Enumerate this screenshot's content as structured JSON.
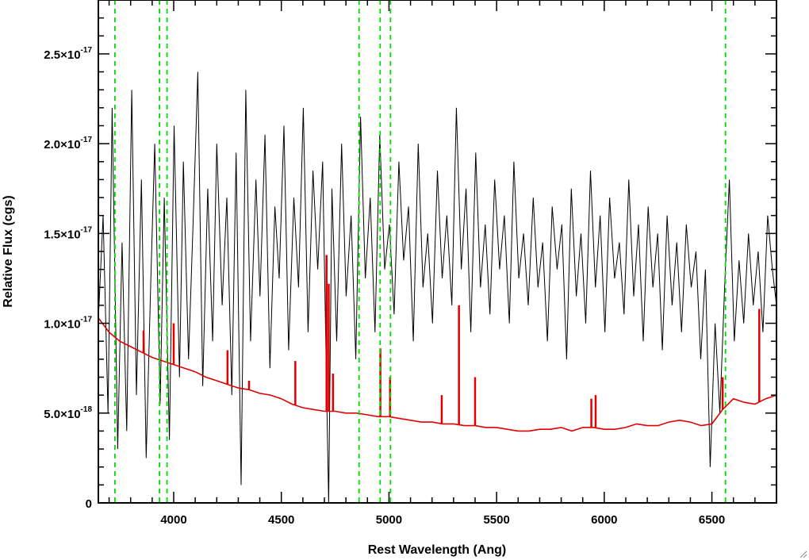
{
  "chart_data": {
    "type": "line",
    "title": "",
    "xlabel": "Rest Wavelength (Ang)",
    "ylabel": "Relative Flux (cgs)",
    "xlim": [
      3650,
      6800
    ],
    "ylim": [
      0,
      2.8e-17
    ],
    "x_ticks": [
      {
        "value": 4000,
        "label": "4000"
      },
      {
        "value": 4500,
        "label": "4500"
      },
      {
        "value": 5000,
        "label": "5000"
      },
      {
        "value": 5500,
        "label": "5500"
      },
      {
        "value": 6000,
        "label": "6000"
      },
      {
        "value": 6500,
        "label": "6500"
      }
    ],
    "y_ticks": [
      {
        "value": 0,
        "mantissa": "0",
        "exponent": ""
      },
      {
        "value": 5e-18,
        "mantissa": "5.0×10",
        "exponent": "-18"
      },
      {
        "value": 1e-17,
        "mantissa": "1.0×10",
        "exponent": "-17"
      },
      {
        "value": 1.5e-17,
        "mantissa": "1.5×10",
        "exponent": "-17"
      },
      {
        "value": 2e-17,
        "mantissa": "2.0×10",
        "exponent": "-17"
      },
      {
        "value": 2.5e-17,
        "mantissa": "2.5×10",
        "exponent": "-17"
      }
    ],
    "grid": false,
    "series": [
      {
        "color": "#000000",
        "x": [
          3650,
          3672,
          3695,
          3714,
          3740,
          3760,
          3782,
          3805,
          3827,
          3850,
          3872,
          3894,
          3912,
          3937,
          3956,
          3980,
          4002,
          4027,
          4045,
          4069,
          4090,
          4112,
          4135,
          4158,
          4181,
          4200,
          4225,
          4247,
          4270,
          4290,
          4313,
          4335,
          4357,
          4382,
          4401,
          4424,
          4447,
          4470,
          4490,
          4512,
          4534,
          4558,
          4580,
          4602,
          4624,
          4647,
          4669,
          4692,
          4712,
          4720,
          4735,
          4757,
          4780,
          4801,
          4824,
          4846,
          4868,
          4890,
          4913,
          4935,
          4957,
          4980,
          5002,
          5024,
          5046,
          5068,
          5091,
          5113,
          5136,
          5158,
          5180,
          5202,
          5225,
          5247,
          5269,
          5292,
          5313,
          5336,
          5358,
          5380,
          5403,
          5425,
          5447,
          5469,
          5491,
          5514,
          5536,
          5559,
          5580,
          5603,
          5625,
          5647,
          5670,
          5692,
          5714,
          5736,
          5758,
          5781,
          5803,
          5825,
          5847,
          5870,
          5892,
          5914,
          5936,
          5959,
          5981,
          6003,
          6025,
          6048,
          6070,
          6092,
          6114,
          6137,
          6159,
          6181,
          6204,
          6226,
          6248,
          6270,
          6292,
          6315,
          6337,
          6359,
          6381,
          6404,
          6426,
          6448,
          6470,
          6492,
          6515,
          6537,
          6559,
          6581,
          6604,
          6626,
          6648,
          6670,
          6692,
          6715,
          6737,
          6759,
          6781,
          6800
        ],
        "values": [
          1.02e-17,
          1.6e-17,
          5e-18,
          2.2e-17,
          3e-18,
          1.45e-17,
          4e-18,
          2.3e-17,
          6e-18,
          1.8e-17,
          2.5e-18,
          1.25e-17,
          2e-17,
          5.5e-18,
          1.7e-17,
          3.5e-18,
          2.1e-17,
          7e-18,
          1.9e-17,
          8e-18,
          1.55e-17,
          2.4e-17,
          6.5e-18,
          1.75e-17,
          9e-18,
          2e-17,
          1.1e-17,
          1.7e-17,
          6e-18,
          1.95e-17,
          1e-18,
          2.3e-17,
          9e-18,
          1.8e-17,
          1.15e-17,
          2.05e-17,
          7.5e-18,
          1.65e-17,
          1.25e-17,
          2.1e-17,
          8.5e-18,
          1.7e-17,
          1.2e-17,
          2.2e-17,
          9.5e-18,
          1.85e-17,
          1.3e-17,
          1.9e-17,
          5e-18,
          0,
          1.75e-17,
          9e-18,
          2e-17,
          1.15e-17,
          1.6e-17,
          8e-18,
          2.15e-17,
          1.25e-17,
          1.7e-17,
          9.5e-18,
          2.05e-17,
          1.3e-17,
          1.55e-17,
          1.05e-17,
          1.9e-17,
          1.35e-17,
          1.65e-17,
          9e-18,
          2e-17,
          1.2e-17,
          1.5e-17,
          1e-17,
          1.85e-17,
          1.25e-17,
          1.6e-17,
          1.1e-17,
          2.2e-17,
          1.3e-17,
          1.75e-17,
          9.5e-18,
          1.95e-17,
          1.2e-17,
          1.55e-17,
          1.05e-17,
          1.8e-17,
          1.3e-17,
          1.6e-17,
          1e-17,
          1.9e-17,
          1.25e-17,
          1.5e-17,
          1.1e-17,
          1.7e-17,
          1.2e-17,
          1.45e-17,
          9e-18,
          1.65e-17,
          1.3e-17,
          1.55e-17,
          8e-18,
          1.75e-17,
          1.15e-17,
          1.5e-17,
          1e-17,
          1.85e-17,
          1.2e-17,
          1.6e-17,
          9.5e-18,
          1.7e-17,
          1.25e-17,
          1.45e-17,
          1.05e-17,
          1.8e-17,
          1.15e-17,
          1.55e-17,
          9e-18,
          1.65e-17,
          1.2e-17,
          1.5e-17,
          8.5e-18,
          1.6e-17,
          1.1e-17,
          1.45e-17,
          9.5e-18,
          1.55e-17,
          1.2e-17,
          1.4e-17,
          8e-18,
          1.3e-17,
          2e-18,
          1e-17,
          5e-18,
          1.2e-17,
          1.8e-17,
          9e-18,
          1.35e-17,
          1e-17,
          1.5e-17,
          1.1e-17,
          1.4e-17,
          9.5e-18,
          1.6e-17,
          1.3e-17,
          1.1e-17
        ]
      },
      {
        "color": "#e00000",
        "x": [
          3650,
          3700,
          3750,
          3800,
          3850,
          3900,
          3950,
          4000,
          4050,
          4100,
          4150,
          4200,
          4250,
          4300,
          4350,
          4400,
          4450,
          4500,
          4550,
          4600,
          4650,
          4700,
          4750,
          4800,
          4850,
          4900,
          4950,
          5000,
          5050,
          5100,
          5150,
          5200,
          5250,
          5300,
          5350,
          5400,
          5450,
          5500,
          5550,
          5600,
          5650,
          5700,
          5750,
          5800,
          5850,
          5900,
          5950,
          6000,
          6050,
          6100,
          6150,
          6200,
          6250,
          6300,
          6350,
          6400,
          6450,
          6500,
          6550,
          6600,
          6650,
          6700,
          6750,
          6800
        ],
        "values": [
          1.03e-17,
          9.5e-18,
          9e-18,
          8.7e-18,
          8.4e-18,
          8.1e-18,
          7.9e-18,
          7.7e-18,
          7.5e-18,
          7.3e-18,
          7e-18,
          6.8e-18,
          6.6e-18,
          6.4e-18,
          6.3e-18,
          6.1e-18,
          6e-18,
          5.8e-18,
          5.5e-18,
          5.3e-18,
          5.2e-18,
          5.1e-18,
          5.1e-18,
          5e-18,
          5e-18,
          4.9e-18,
          4.8e-18,
          4.8e-18,
          4.7e-18,
          4.6e-18,
          4.5e-18,
          4.5e-18,
          4.4e-18,
          4.4e-18,
          4.3e-18,
          4.3e-18,
          4.2e-18,
          4.2e-18,
          4.1e-18,
          4e-18,
          4e-18,
          4.1e-18,
          4.1e-18,
          4.2e-18,
          4e-18,
          4.2e-18,
          4.2e-18,
          4.1e-18,
          4.1e-18,
          4.2e-18,
          4.4e-18,
          4.3e-18,
          4.3e-18,
          4.5e-18,
          4.6e-18,
          4.5e-18,
          4.3e-18,
          4.4e-18,
          5.2e-18,
          5.8e-18,
          5.6e-18,
          5.5e-18,
          5.8e-18,
          6e-18
        ],
        "spikes": [
          [
            3860,
            9.6e-18
          ],
          [
            4000,
            1e-17
          ],
          [
            4250,
            8.5e-18
          ],
          [
            4350,
            6.8e-18
          ],
          [
            4565,
            7.9e-18
          ],
          [
            4710,
            1.38e-17
          ],
          [
            4720,
            1.22e-17
          ],
          [
            4740,
            7.2e-18
          ],
          [
            4960,
            8.6e-18
          ],
          [
            5005,
            7e-18
          ],
          [
            5245,
            6e-18
          ],
          [
            5325,
            1.1e-17
          ],
          [
            5400,
            7e-18
          ],
          [
            5940,
            5.8e-18
          ],
          [
            5960,
            6e-18
          ],
          [
            6550,
            7e-18
          ],
          [
            6720,
            1.08e-17
          ]
        ]
      }
    ],
    "vertical_lines": [
      {
        "x": 3727,
        "color": "#00dd00",
        "style": "dashed"
      },
      {
        "x": 3934,
        "color": "#00dd00",
        "style": "dashed"
      },
      {
        "x": 3969,
        "color": "#00dd00",
        "style": "dashed"
      },
      {
        "x": 4861,
        "color": "#00dd00",
        "style": "dashed"
      },
      {
        "x": 4959,
        "color": "#00dd00",
        "style": "dashed"
      },
      {
        "x": 5007,
        "color": "#00dd00",
        "style": "dashed"
      },
      {
        "x": 6563,
        "color": "#00dd00",
        "style": "dashed"
      }
    ]
  }
}
